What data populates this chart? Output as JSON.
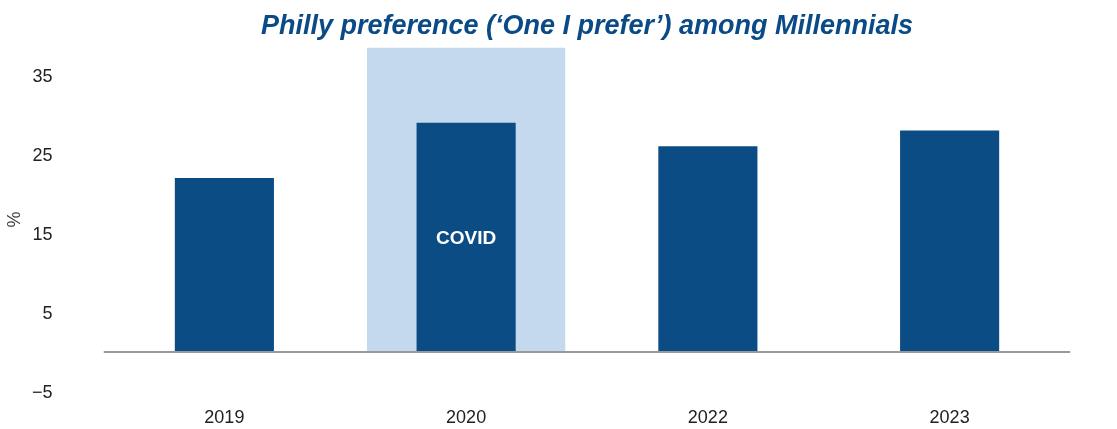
{
  "chart_data": {
    "type": "bar",
    "title": "Philly preference (‘One I prefer’) among Millennials",
    "ylabel": "%",
    "categories": [
      "2019",
      "2020",
      "2022",
      "2023"
    ],
    "values": [
      22,
      29,
      26,
      28
    ],
    "color": "#0b4c84",
    "ylim": [
      -5,
      38.5
    ],
    "yticks": [
      -5,
      5,
      15,
      25,
      35
    ],
    "grid": false,
    "bands": [
      {
        "axis": "x",
        "from": "2020",
        "to": "2020",
        "label": "COVID",
        "color": "#c5d9ee"
      }
    ]
  }
}
